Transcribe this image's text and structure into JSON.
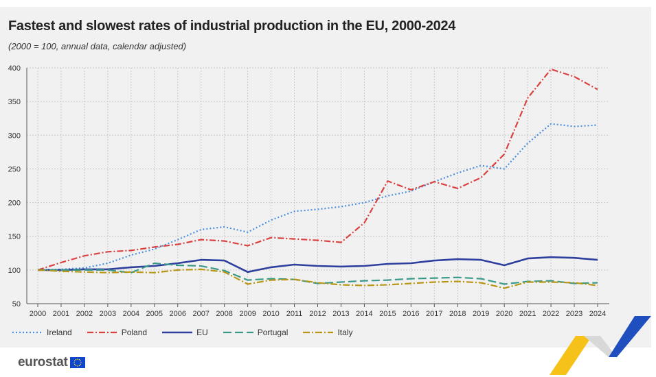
{
  "colors": {
    "ireland": "#4a8fdb",
    "poland": "#d9413f",
    "eu": "#2e3f9e",
    "portugal": "#3a9a8a",
    "italy": "#b89614",
    "grid": "#c8c8c8",
    "panel": "#f1f1f1",
    "eu_flag": "#0e47cb",
    "eu_stars": "#f2d53a",
    "deco_blue": "#1f4fbf",
    "deco_yellow": "#f6c21a"
  },
  "logo": {
    "text": "eurostat"
  },
  "chart_data": {
    "type": "line",
    "title": "Fastest and slowest rates of industrial production in the EU, 2000-2024",
    "subtitle": "(2000 = 100, annual data, calendar adjusted)",
    "xlabel": "",
    "ylabel": "",
    "ylim": [
      50,
      400
    ],
    "yticks": [
      50,
      100,
      150,
      200,
      250,
      300,
      350,
      400
    ],
    "grid": true,
    "legend_position": "bottom-left",
    "categories": [
      "2000",
      "2001",
      "2002",
      "2003",
      "2004",
      "2005",
      "2006",
      "2007",
      "2008",
      "2009",
      "2010",
      "2011",
      "2012",
      "2013",
      "2014",
      "2015",
      "2016",
      "2017",
      "2018",
      "2019",
      "2020",
      "2021",
      "2022",
      "2023",
      "2024"
    ],
    "series": [
      {
        "name": "Ireland",
        "key": "ireland",
        "dash": "2,3",
        "values": [
          100,
          101,
          103,
          110,
          122,
          131,
          145,
          160,
          164,
          156,
          174,
          187,
          190,
          194,
          200,
          210,
          217,
          231,
          244,
          255,
          250,
          288,
          317,
          313,
          315
        ]
      },
      {
        "name": "Poland",
        "key": "poland",
        "dash": "9,3,2,3",
        "values": [
          100,
          111,
          121,
          127,
          129,
          134,
          138,
          145,
          143,
          136,
          148,
          146,
          144,
          141,
          170,
          232,
          219,
          231,
          221,
          237,
          272,
          355,
          398,
          387,
          368
        ]
      },
      {
        "name": "EU",
        "key": "eu",
        "dash": "",
        "values": [
          100,
          100,
          101,
          101,
          104,
          106,
          110,
          115,
          114,
          97,
          104,
          108,
          106,
          105,
          106,
          109,
          110,
          114,
          116,
          115,
          107,
          117,
          119,
          118,
          115
        ]
      },
      {
        "name": "Portugal",
        "key": "portugal",
        "dash": "12,5",
        "values": [
          100,
          100,
          100,
          100,
          96,
          110,
          107,
          106,
          99,
          85,
          87,
          86,
          80,
          82,
          84,
          85,
          87,
          88,
          89,
          87,
          79,
          83,
          84,
          80,
          81
        ]
      },
      {
        "name": "Italy",
        "key": "italy",
        "dash": "10,3,2,3",
        "values": [
          100,
          98,
          97,
          96,
          97,
          96,
          100,
          101,
          97,
          79,
          85,
          86,
          81,
          78,
          77,
          78,
          80,
          82,
          83,
          81,
          73,
          82,
          82,
          81,
          77
        ]
      }
    ]
  }
}
